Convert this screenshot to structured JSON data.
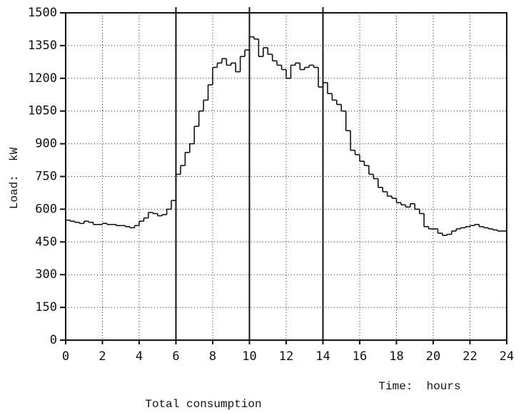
{
  "chart_data": {
    "type": "step",
    "title": "Total consumption",
    "xlabel": "Time:  hours",
    "ylabel": "Load:  kW",
    "x": [
      0,
      0.25,
      0.5,
      0.75,
      1,
      1.25,
      1.5,
      1.75,
      2,
      2.25,
      2.5,
      2.75,
      3,
      3.25,
      3.5,
      3.75,
      4,
      4.25,
      4.5,
      4.75,
      5,
      5.25,
      5.5,
      5.75,
      6,
      6.25,
      6.5,
      6.75,
      7,
      7.25,
      7.5,
      7.75,
      8,
      8.25,
      8.5,
      8.75,
      9,
      9.25,
      9.5,
      9.75,
      10,
      10.25,
      10.5,
      10.75,
      11,
      11.25,
      11.5,
      11.75,
      12,
      12.25,
      12.5,
      12.75,
      13,
      13.25,
      13.5,
      13.75,
      14,
      14.25,
      14.5,
      14.75,
      15,
      15.25,
      15.5,
      15.75,
      16,
      16.25,
      16.5,
      16.75,
      17,
      17.25,
      17.5,
      17.75,
      18,
      18.25,
      18.5,
      18.75,
      19,
      19.25,
      19.5,
      19.75,
      20,
      20.25,
      20.5,
      20.75,
      21,
      21.25,
      21.5,
      21.75,
      22,
      22.25,
      22.5,
      22.75,
      23,
      23.25,
      23.5,
      23.75
    ],
    "values": [
      550,
      545,
      540,
      535,
      545,
      540,
      530,
      530,
      535,
      530,
      530,
      525,
      525,
      520,
      515,
      525,
      545,
      560,
      585,
      580,
      570,
      575,
      600,
      640,
      760,
      800,
      860,
      900,
      980,
      1050,
      1100,
      1170,
      1250,
      1270,
      1290,
      1260,
      1270,
      1230,
      1300,
      1330,
      1390,
      1380,
      1300,
      1340,
      1310,
      1280,
      1260,
      1240,
      1200,
      1260,
      1270,
      1240,
      1250,
      1260,
      1250,
      1160,
      1180,
      1130,
      1100,
      1080,
      1050,
      960,
      870,
      850,
      820,
      800,
      760,
      740,
      700,
      680,
      660,
      650,
      630,
      620,
      610,
      625,
      600,
      580,
      520,
      510,
      510,
      490,
      480,
      485,
      500,
      510,
      515,
      520,
      525,
      530,
      520,
      515,
      510,
      505,
      500,
      500
    ],
    "color": "#111111",
    "xlim": [
      0,
      24
    ],
    "xticks": [
      0,
      2,
      4,
      6,
      8,
      10,
      12,
      14,
      16,
      18,
      20,
      22,
      24
    ],
    "ylim": [
      0,
      1500
    ],
    "yticks": [
      0,
      150,
      300,
      450,
      600,
      750,
      900,
      1050,
      1200,
      1350,
      1500
    ],
    "vlines": [
      6,
      10,
      14
    ],
    "grid": true
  }
}
